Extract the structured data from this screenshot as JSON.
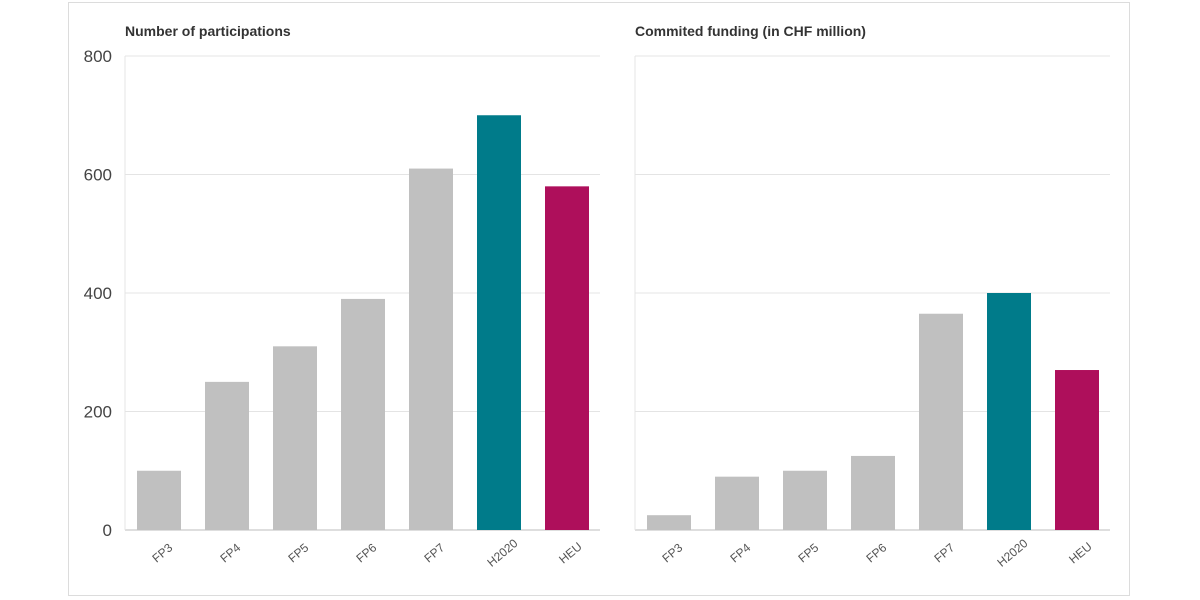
{
  "chart_data": [
    {
      "type": "bar",
      "title": "Number of participations",
      "categories": [
        "FP3",
        "FP4",
        "FP5",
        "FP6",
        "FP7",
        "H2020",
        "HEU"
      ],
      "values": [
        100,
        250,
        310,
        390,
        610,
        700,
        580
      ],
      "colors": [
        "#c0c0c0",
        "#c0c0c0",
        "#c0c0c0",
        "#c0c0c0",
        "#c0c0c0",
        "#007b8a",
        "#ae0f5b"
      ],
      "ylim": [
        0,
        800
      ],
      "yticks": [
        "0",
        "200",
        "400",
        "600",
        "800"
      ],
      "grid": true
    },
    {
      "type": "bar",
      "title": "Commited funding (in CHF million)",
      "categories": [
        "FP3",
        "FP4",
        "FP5",
        "FP6",
        "FP7",
        "H2020",
        "HEU"
      ],
      "values": [
        25,
        90,
        100,
        125,
        365,
        400,
        270
      ],
      "colors": [
        "#c0c0c0",
        "#c0c0c0",
        "#c0c0c0",
        "#c0c0c0",
        "#c0c0c0",
        "#007b8a",
        "#ae0f5b"
      ],
      "ylim": [
        0,
        800
      ],
      "grid": true
    }
  ]
}
